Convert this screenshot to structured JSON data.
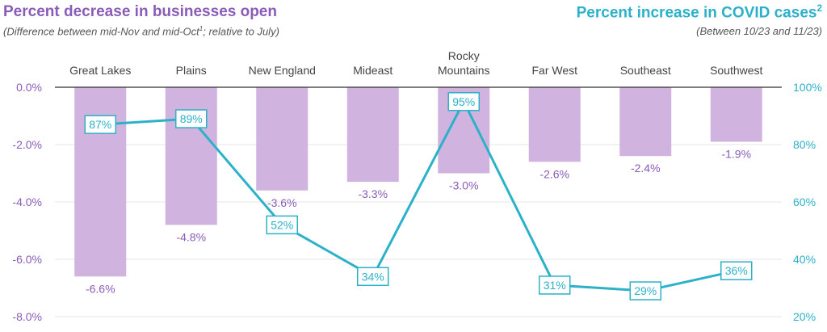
{
  "header": {
    "left_title": "Percent decrease in businesses open",
    "left_subtitle_pre": "(Difference between mid-Nov and mid-Oct",
    "left_subtitle_sup": "1",
    "left_subtitle_post": "; relative to July)",
    "right_title": "Percent increase in COVID cases",
    "right_title_sup": "2",
    "right_subtitle": "(Between 10/23 and 11/23)"
  },
  "colors": {
    "bar": "#d1b3df",
    "line": "#2cb1c9",
    "left_axis_text": "#8a5cb8",
    "right_axis_text": "#2cb1c9",
    "category_text": "#444444",
    "grid": "#e4e4e4",
    "baseline": "#333333"
  },
  "chart_data": {
    "type": "bar",
    "categories": [
      "Great Lakes",
      "Plains",
      "New England",
      "Mideast",
      "Rocky Mountains",
      "Far West",
      "Southeast",
      "Southwest"
    ],
    "category_lines": [
      [
        "Great Lakes"
      ],
      [
        "Plains"
      ],
      [
        "New England"
      ],
      [
        "Mideast"
      ],
      [
        "Rocky",
        "Mountains"
      ],
      [
        "Far West"
      ],
      [
        "Southeast"
      ],
      [
        "Southwest"
      ]
    ],
    "series": [
      {
        "name": "Percent decrease in businesses open",
        "type": "bar",
        "axis": "left",
        "values": [
          -6.6,
          -4.8,
          -3.6,
          -3.3,
          -3.0,
          -2.6,
          -2.4,
          -1.9
        ],
        "labels": [
          "-6.6%",
          "-4.8%",
          "-3.6%",
          "-3.3%",
          "-3.0%",
          "-2.6%",
          "-2.4%",
          "-1.9%"
        ]
      },
      {
        "name": "Percent increase in COVID cases",
        "type": "line",
        "axis": "right",
        "values": [
          87,
          89,
          52,
          34,
          95,
          31,
          29,
          36
        ],
        "labels": [
          "87%",
          "89%",
          "52%",
          "34%",
          "95%",
          "31%",
          "29%",
          "36%"
        ]
      }
    ],
    "left_axis": {
      "ylim": [
        -8,
        0
      ],
      "ticks": [
        0,
        -2,
        -4,
        -6,
        -8
      ],
      "tick_labels": [
        "0.0%",
        "-2.0%",
        "-4.0%",
        "-6.0%",
        "-8.0%"
      ]
    },
    "right_axis": {
      "ylim": [
        20,
        100
      ],
      "ticks": [
        100,
        80,
        60,
        40,
        20
      ],
      "tick_labels": [
        "100%",
        "80%",
        "60%",
        "40%",
        "20%"
      ]
    },
    "grid": true
  }
}
